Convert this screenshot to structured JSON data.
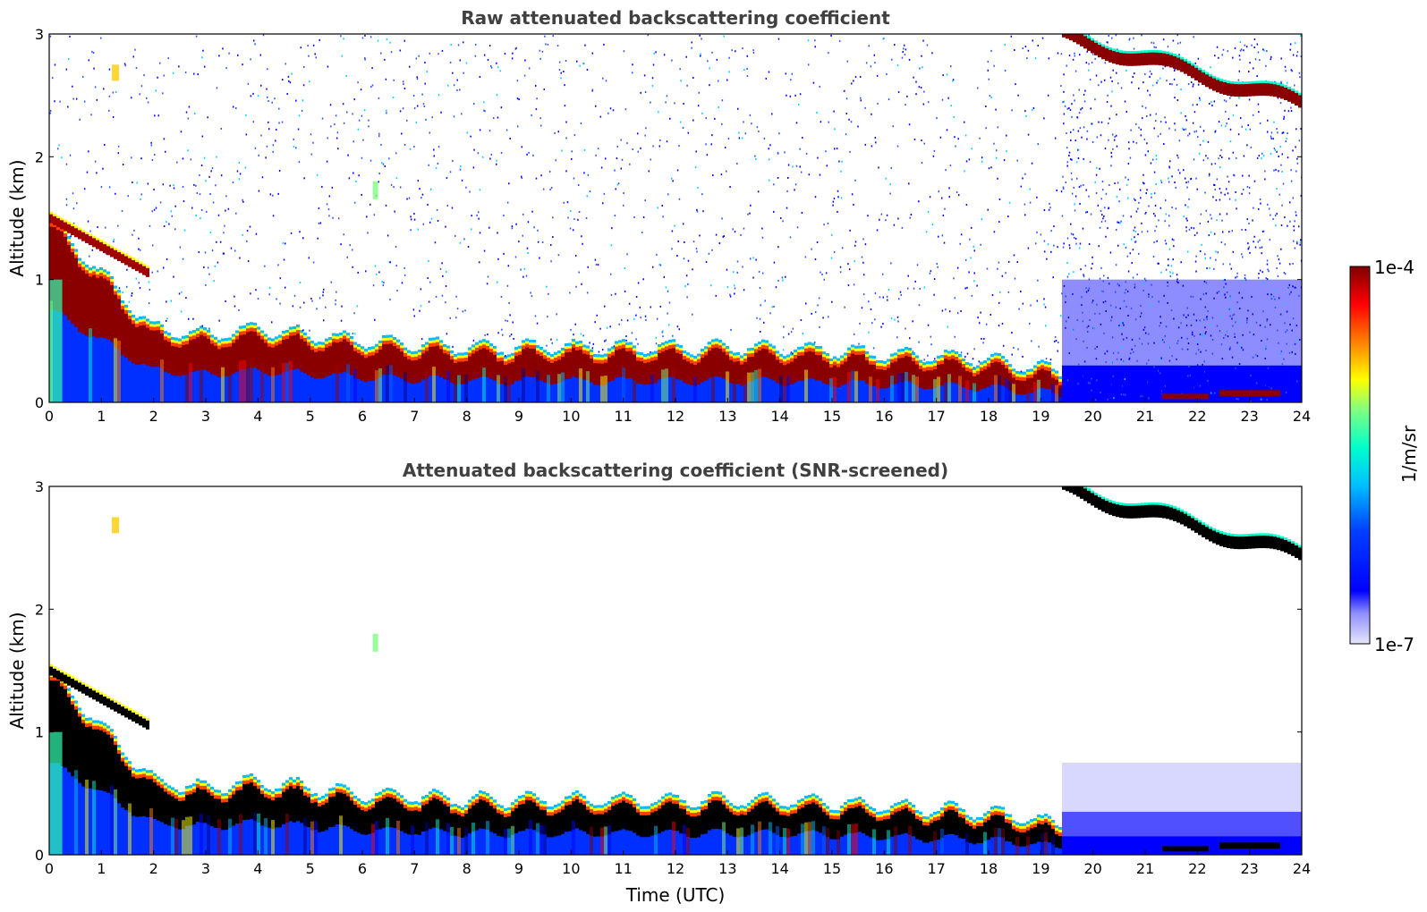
{
  "chart_data": [
    {
      "type": "heatmap",
      "panel": "raw",
      "title": "Raw attenuated backscattering coefficient",
      "ylabel": "Altitude (km)",
      "xlabel": "",
      "xlim": [
        0,
        24
      ],
      "ylim": [
        0,
        3
      ],
      "x_ticks": [
        "0",
        "1",
        "2",
        "3",
        "4",
        "5",
        "6",
        "7",
        "8",
        "9",
        "10",
        "11",
        "12",
        "13",
        "14",
        "15",
        "16",
        "17",
        "18",
        "19",
        "20",
        "21",
        "22",
        "23",
        "24"
      ],
      "y_ticks": [
        "0",
        "1",
        "2",
        "3"
      ],
      "screened": false
    },
    {
      "type": "heatmap",
      "panel": "screened",
      "title": "Attenuated backscattering coefficient (SNR-screened)",
      "ylabel": "Altitude (km)",
      "xlabel": "Time (UTC)",
      "xlim": [
        0,
        24
      ],
      "ylim": [
        0,
        3
      ],
      "x_ticks": [
        "0",
        "1",
        "2",
        "3",
        "4",
        "5",
        "6",
        "7",
        "8",
        "9",
        "10",
        "11",
        "12",
        "13",
        "14",
        "15",
        "16",
        "17",
        "18",
        "19",
        "20",
        "21",
        "22",
        "23",
        "24"
      ],
      "y_ticks": [
        "0",
        "1",
        "2",
        "3"
      ],
      "screened": true
    }
  ],
  "colorbar": {
    "label": "1/m/sr",
    "max_label": "1e-4",
    "min_label": "1e-7",
    "scale": "log",
    "range": [
      1e-07,
      0.0001
    ],
    "colormap": "jet",
    "colors": [
      "#e8e8ff",
      "#0000ff",
      "#00bfff",
      "#00ffcc",
      "#ffff00",
      "#ff8000",
      "#ff0000",
      "#800000"
    ]
  },
  "layers": {
    "boundary_layer": {
      "description_points_time_h": [
        0,
        2,
        3,
        4,
        6,
        8,
        10,
        12,
        14,
        16,
        18,
        19.4
      ],
      "top_km": [
        1.5,
        0.6,
        0.55,
        0.6,
        0.5,
        0.45,
        0.45,
        0.45,
        0.45,
        0.4,
        0.35,
        0.25
      ]
    },
    "early_cloud": {
      "time_h": [
        0,
        1.9
      ],
      "alt_km": [
        1.5,
        1.05
      ]
    },
    "late_cloud": {
      "time_h": [
        19.4,
        24
      ],
      "alt_km": [
        2.95,
        2.4
      ]
    }
  }
}
